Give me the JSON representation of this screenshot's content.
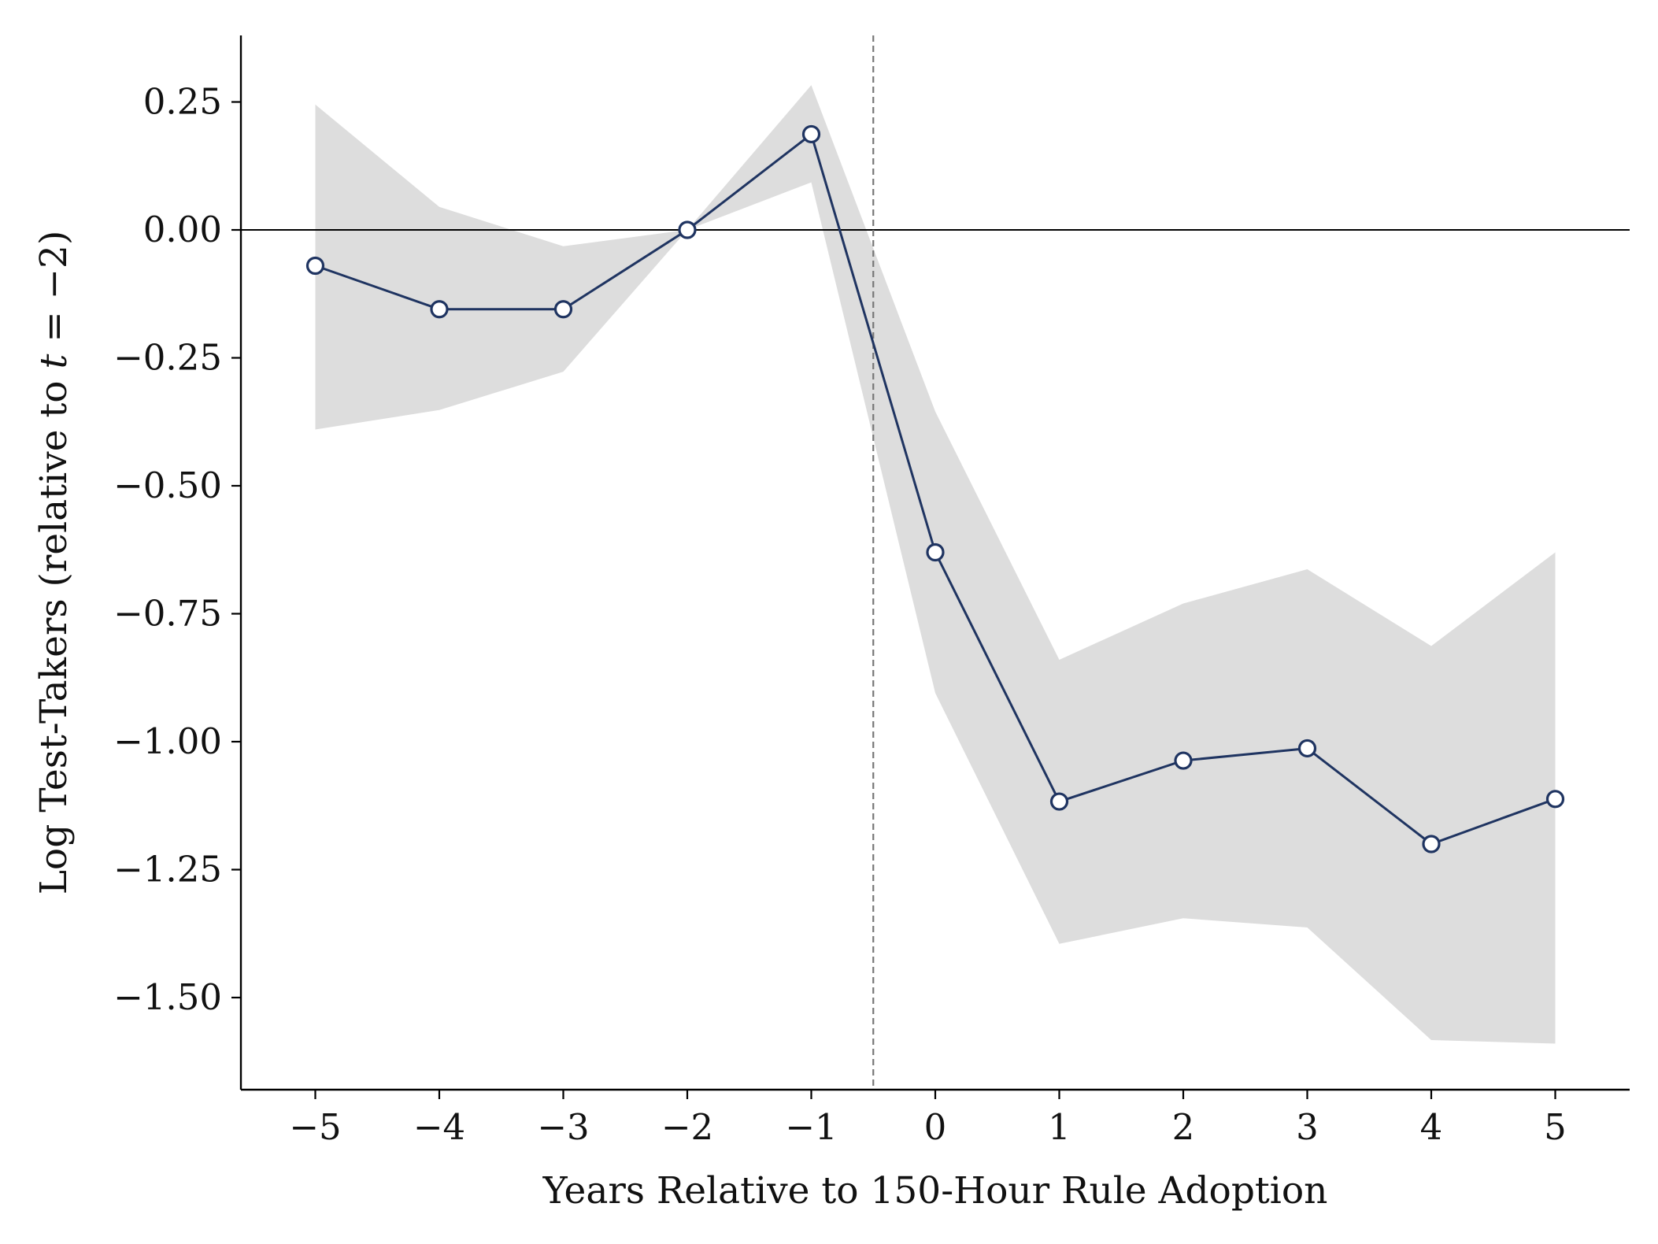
{
  "chart_data": {
    "type": "line",
    "title": "",
    "xlabel": "Years Relative to 150-Hour Rule Adoption",
    "ylabel_parts": [
      "Log Test-Takers (relative to ",
      "t",
      " = −2)"
    ],
    "x": [
      -5,
      -4,
      -3,
      -2,
      -1,
      0,
      1,
      2,
      3,
      4,
      5
    ],
    "series": [
      {
        "values": [
          -0.07,
          -0.155,
          -0.155,
          0.0,
          0.187,
          -0.63,
          -1.117,
          -1.037,
          -1.013,
          -1.2,
          -1.112
        ],
        "ci_lower": [
          -0.39,
          -0.352,
          -0.277,
          0.0,
          0.093,
          -0.905,
          -1.395,
          -1.345,
          -1.363,
          -1.583,
          -1.59
        ],
        "ci_upper": [
          0.245,
          0.045,
          -0.032,
          0.0,
          0.283,
          -0.355,
          -0.84,
          -0.73,
          -0.663,
          -0.813,
          -0.63
        ]
      }
    ],
    "xlim": [
      -5.6,
      5.6
    ],
    "ylim": [
      -1.68,
      0.38
    ],
    "xticks": [
      -5,
      -4,
      -3,
      -2,
      -1,
      0,
      1,
      2,
      3,
      4,
      5
    ],
    "xtick_labels": [
      "−5",
      "−4",
      "−3",
      "−2",
      "−1",
      "0",
      "1",
      "2",
      "3",
      "4",
      "5"
    ],
    "yticks": [
      0.25,
      0.0,
      -0.25,
      -0.5,
      -0.75,
      -1.0,
      -1.25,
      -1.5
    ],
    "ytick_labels": [
      "0.25",
      "0.00",
      "−0.25",
      "−0.50",
      "−0.75",
      "−1.00",
      "−1.25",
      "−1.50"
    ],
    "reference_lines": {
      "horizontal_y": 0.0,
      "vertical_x": -0.5
    },
    "grid": false,
    "legend": "none",
    "colors": {
      "line": "#1f3461",
      "marker_fill": "#ffffff",
      "ci_band": "#dddddd",
      "zero_line": "#000000",
      "event_line": "#777777",
      "axes": "#000000"
    }
  }
}
